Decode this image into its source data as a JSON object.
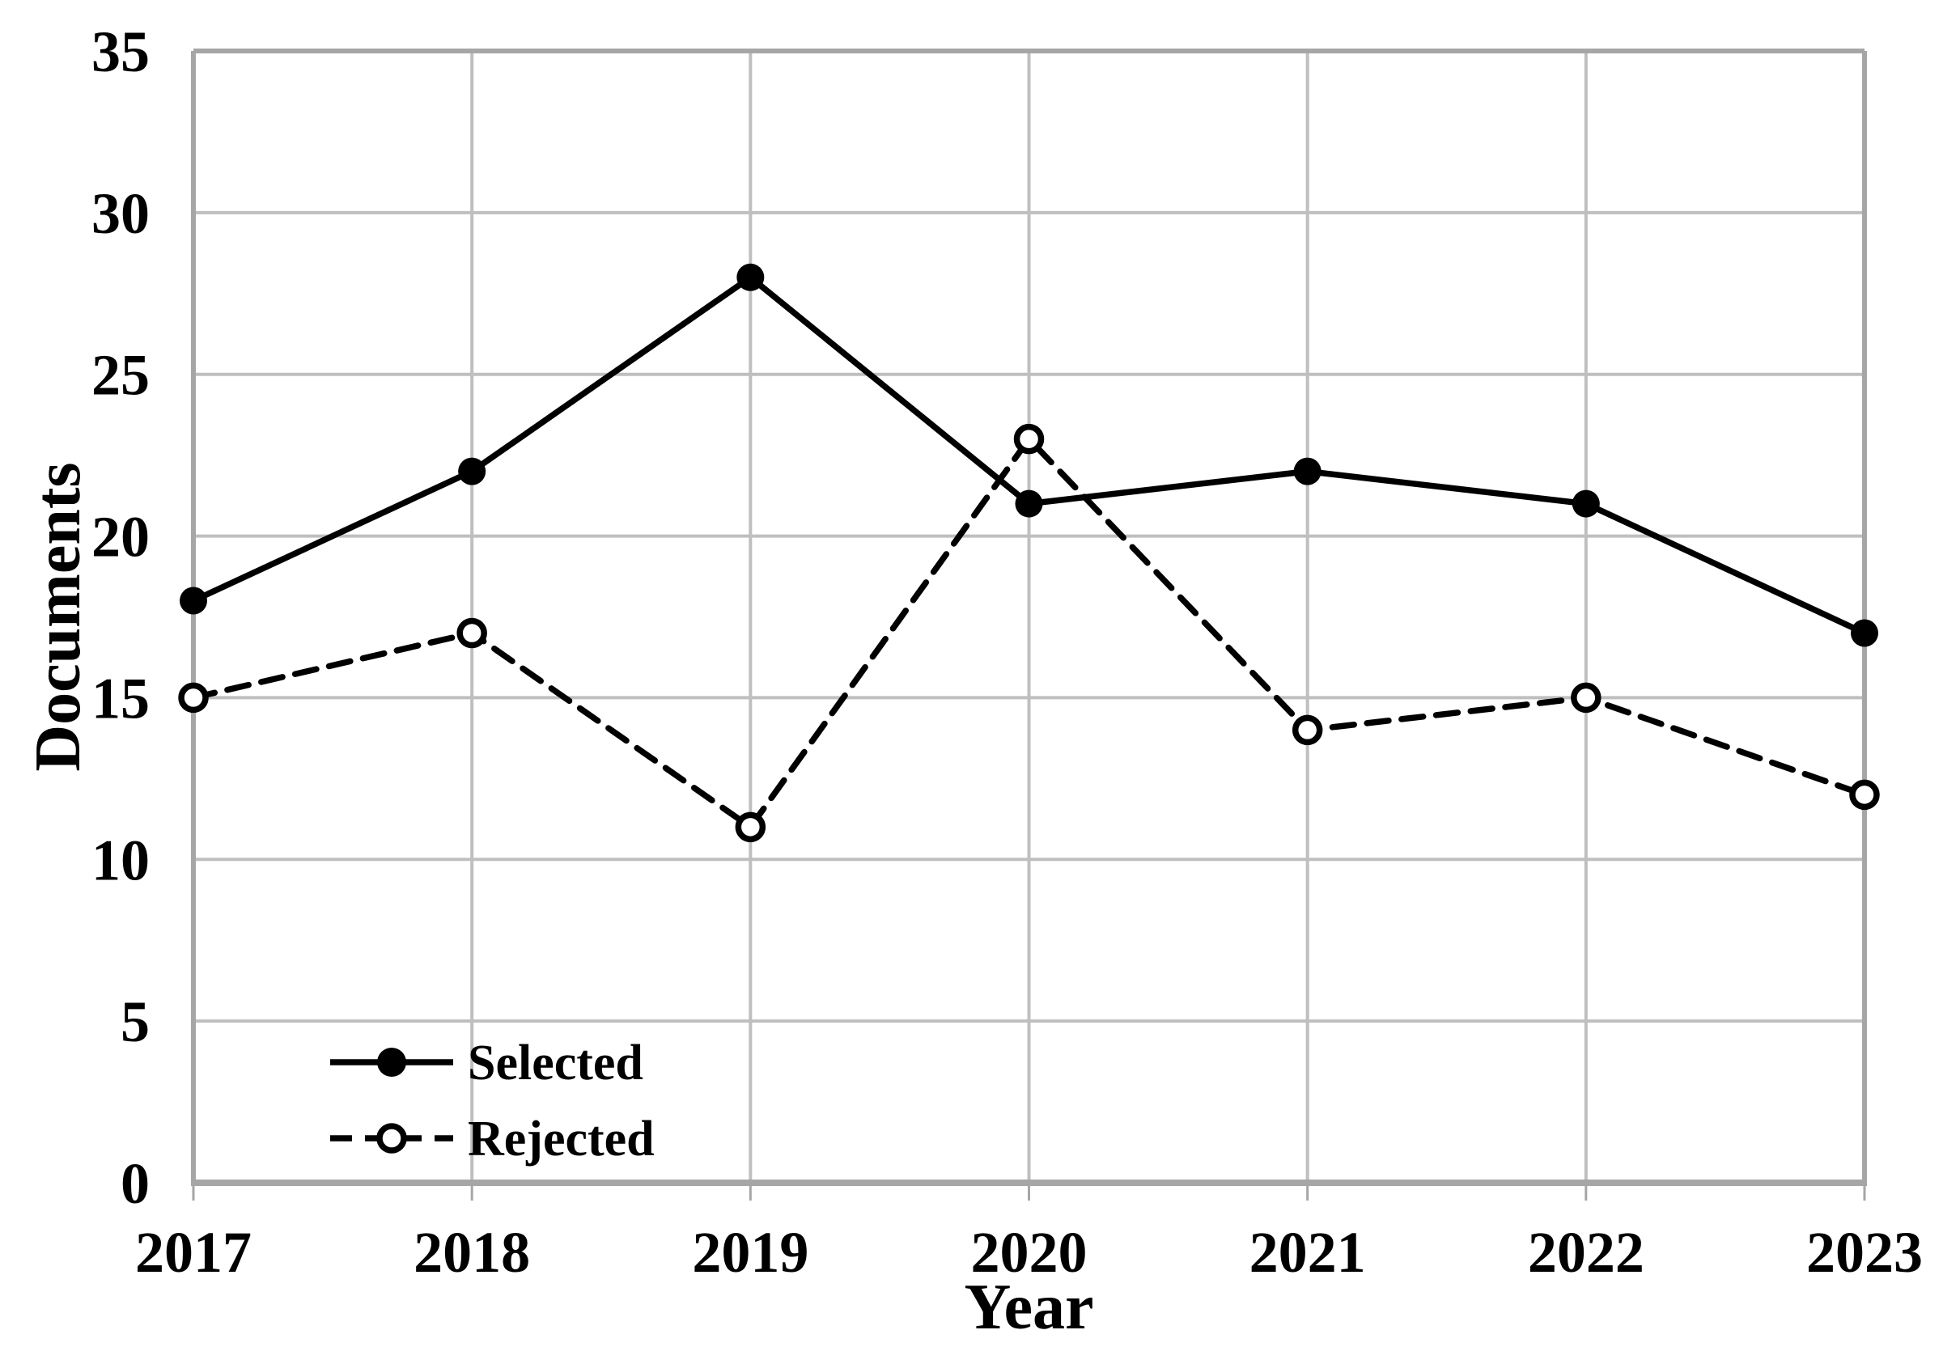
{
  "chart_data": {
    "type": "line",
    "title": "",
    "xlabel": "Year",
    "ylabel": "Documents",
    "categories": [
      "2017",
      "2018",
      "2019",
      "2020",
      "2021",
      "2022",
      "2023"
    ],
    "series": [
      {
        "name": "Selected",
        "line_style": "solid",
        "marker": "filled-circle",
        "values": [
          18,
          22,
          28,
          21,
          22,
          21,
          17
        ]
      },
      {
        "name": "Rejected",
        "line_style": "dashed",
        "marker": "open-circle",
        "values": [
          15,
          17,
          11,
          23,
          14,
          15,
          12
        ]
      }
    ],
    "ylim": [
      0,
      35
    ],
    "yticks": [
      0,
      5,
      10,
      15,
      20,
      25,
      30,
      35
    ],
    "grid": true,
    "legend_position": "inside-bottom-left"
  },
  "colors": {
    "background": "#FFFFFF",
    "gridline": "#BFBFBF",
    "axis": "#A6A6A6",
    "text": "#000000",
    "series_line": "#000000",
    "open_marker_fill": "#FFFFFF"
  }
}
